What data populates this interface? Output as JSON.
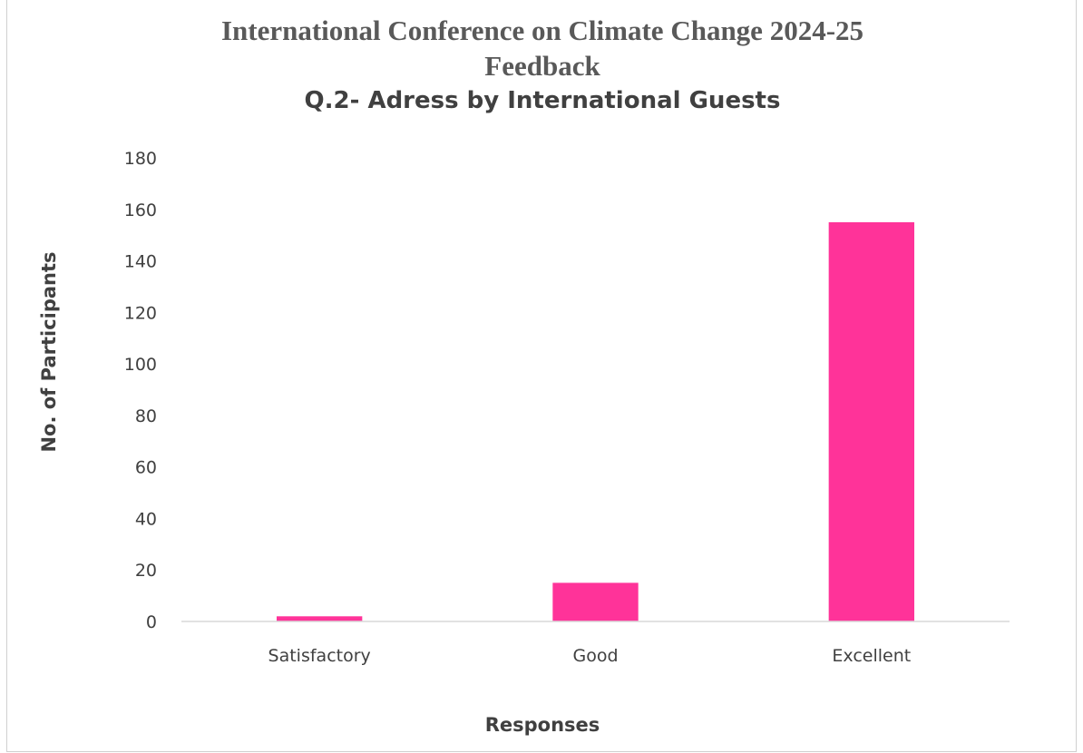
{
  "chart_data": {
    "type": "bar",
    "title_lines": [
      "International Conference on Climate Change 2024-25",
      "Feedback"
    ],
    "subtitle": "Q.2- Adress by International Guests",
    "categories": [
      "Satisfactory",
      "Good",
      "Excellent"
    ],
    "values": [
      2,
      15,
      155
    ],
    "xlabel": "Responses",
    "ylabel": "No. of Participants",
    "ylim": [
      0,
      180
    ],
    "yticks": [
      0,
      20,
      40,
      60,
      80,
      100,
      120,
      140,
      160,
      180
    ],
    "grid": false,
    "legend": "none",
    "bar_color": "#FF3399"
  }
}
